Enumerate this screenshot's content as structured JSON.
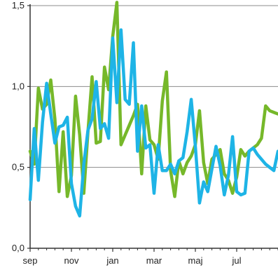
{
  "chart_data": {
    "type": "line",
    "title": "",
    "xlabel": "",
    "ylabel": "",
    "ylim": [
      0,
      1.5
    ],
    "yticks": [
      0,
      0.5,
      1.0,
      1.5
    ],
    "ytick_labels": [
      "0,0",
      "0,5",
      "1,0",
      "1,5"
    ],
    "xticks": [
      {
        "label": "sep",
        "index": 0
      },
      {
        "label": "nov",
        "index": 10
      },
      {
        "label": "jan",
        "index": 20
      },
      {
        "label": "mar",
        "index": 30
      },
      {
        "label": "maj",
        "index": 40
      },
      {
        "label": "jul",
        "index": 50
      }
    ],
    "x_count": 61,
    "grid": "horizontal",
    "legend": "none",
    "series": [
      {
        "color": "#76B82A",
        "values": [
          0.6,
          0.52,
          0.99,
          0.86,
          0.89,
          1.04,
          0.8,
          0.35,
          0.72,
          0.32,
          0.45,
          0.94,
          0.7,
          0.34,
          0.72,
          1.06,
          0.65,
          0.66,
          1.12,
          0.98,
          1.31,
          1.52,
          0.64,
          0.7,
          0.76,
          0.82,
          0.89,
          0.46,
          0.88,
          0.67,
          0.64,
          0.55,
          0.91,
          1.09,
          0.48,
          0.32,
          0.54,
          0.46,
          0.53,
          0.57,
          0.64,
          0.85,
          0.53,
          0.4,
          0.55,
          0.58,
          0.61,
          0.46,
          0.42,
          0.34,
          0.44,
          0.61,
          0.57,
          0.6,
          0.62,
          0.64,
          0.68,
          0.88,
          0.85,
          0.84,
          0.83
        ]
      },
      {
        "color": "#1EB4E6",
        "values": [
          0.3,
          0.74,
          0.42,
          0.78,
          1.02,
          0.83,
          0.65,
          0.75,
          0.76,
          0.81,
          0.4,
          0.26,
          0.2,
          0.52,
          0.73,
          0.8,
          1.03,
          0.74,
          0.77,
          0.68,
          1.3,
          0.9,
          1.35,
          0.92,
          0.89,
          1.27,
          0.6,
          0.88,
          0.62,
          0.64,
          0.34,
          0.64,
          0.48,
          0.48,
          0.52,
          0.46,
          0.54,
          0.56,
          0.72,
          0.92,
          0.63,
          0.28,
          0.41,
          0.35,
          0.49,
          0.63,
          0.51,
          0.33,
          0.45,
          0.69,
          0.35,
          0.33,
          0.34,
          0.6,
          0.62,
          0.58,
          0.55,
          0.52,
          0.5,
          0.48,
          0.6
        ]
      }
    ]
  }
}
